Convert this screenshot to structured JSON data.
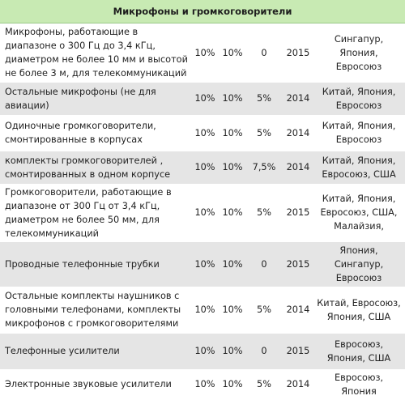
{
  "table": {
    "title": "Микрофоны и громкоговорители",
    "rows": [
      {
        "name": "Микрофоны, работающие в диапазоне о 300 Гц до 3,4 кГц, диаметром не более 10 мм и высотой не более 3 м, для телекоммуникаций",
        "rate1": "10%",
        "rate2": "10%",
        "rate3": "0",
        "year": "2015",
        "countries": "Сингапур, Япония, Евросоюз"
      },
      {
        "name": "Остальные микрофоны (не для авиации)",
        "rate1": "10%",
        "rate2": "10%",
        "rate3": "5%",
        "year": "2014",
        "countries": "Китай, Япония, Евросоюз"
      },
      {
        "name": "Одиночные громкоговорители, смонтированные в корпусах",
        "rate1": "10%",
        "rate2": "10%",
        "rate3": "5%",
        "year": "2014",
        "countries": "Китай, Япония, Евросоюз"
      },
      {
        "name": "комплекты громкоговорителей , смонтированных в одном корпусе",
        "rate1": "10%",
        "rate2": "10%",
        "rate3": "7,5%",
        "year": "2014",
        "countries": "Китай, Япония, Евросоюз, США"
      },
      {
        "name": "Громкоговорители, работающие в диапазоне от 300 Гц от 3,4 кГц, диаметром не более 50 мм, для телекоммуникаций",
        "rate1": "10%",
        "rate2": "10%",
        "rate3": "5%",
        "year": "2015",
        "countries": "Китай, Япония, Евросоюз, США, Малайзия,"
      },
      {
        "name": "Проводные телефонные трубки",
        "rate1": "10%",
        "rate2": "10%",
        "rate3": "0",
        "year": "2015",
        "countries": "Япония, Сингапур, Евросоюз"
      },
      {
        "name": "Остальные комплекты наушников с головными телефонами, комплекты микрофонов с громкоговорителями",
        "rate1": "10%",
        "rate2": "10%",
        "rate3": "5%",
        "year": "2014",
        "countries": "Китай, Евросоюз, Япония, США"
      },
      {
        "name": "Телефонные усилители",
        "rate1": "10%",
        "rate2": "10%",
        "rate3": "0",
        "year": "2015",
        "countries": "Евросоюз, Япония, США"
      },
      {
        "name": "Электронные звуковые усилители",
        "rate1": "10%",
        "rate2": "10%",
        "rate3": "5%",
        "year": "2014",
        "countries": "Евросоюз, Япония"
      }
    ]
  }
}
